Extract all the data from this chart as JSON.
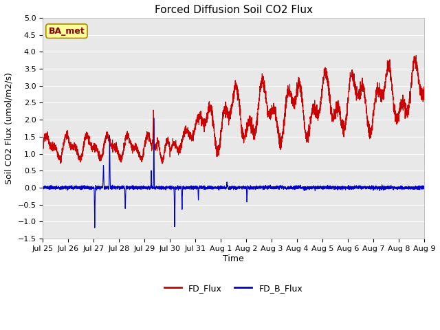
{
  "title": "Forced Diffusion Soil CO2 Flux",
  "xlabel": "Time",
  "ylabel_display": "Soil CO2 Flux (umol/m2/s)",
  "ylim": [
    -1.5,
    5.0
  ],
  "yticks": [
    -1.5,
    -1.0,
    -0.5,
    0.0,
    0.5,
    1.0,
    1.5,
    2.0,
    2.5,
    3.0,
    3.5,
    4.0,
    4.5,
    5.0
  ],
  "fd_flux_color": "#cc0000",
  "fd_b_flux_color": "#0000cc",
  "fig_facecolor": "#ffffff",
  "plot_facecolor": "#e8e8e8",
  "grid_color": "#ffffff",
  "annotation_text": "BA_met",
  "annotation_box_color": "#ffff99",
  "annotation_border_color": "#aa8800",
  "title_fontsize": 11,
  "axis_fontsize": 9,
  "tick_fontsize": 8,
  "legend_fontsize": 9,
  "linewidth": 0.8,
  "xtick_labels": [
    "Jul 25",
    "Jul 26",
    "Jul 27",
    "Jul 28",
    "Jul 29",
    "Jul 30",
    "Jul 31",
    "Aug 1",
    "Aug 2",
    "Aug 3",
    "Aug 4",
    "Aug 5",
    "Aug 6",
    "Aug 7",
    "Aug 8",
    "Aug 9"
  ]
}
